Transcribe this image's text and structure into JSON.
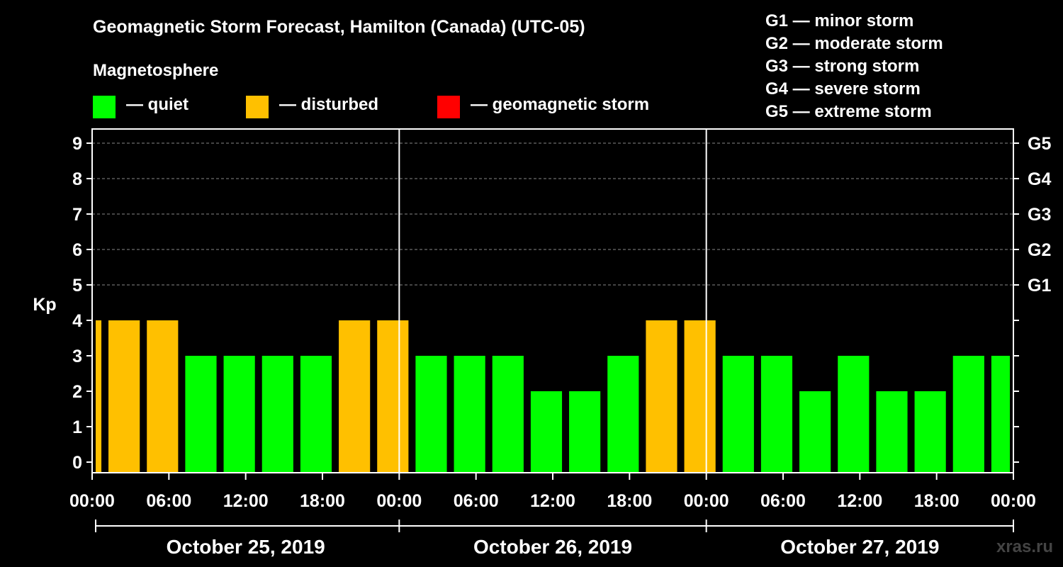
{
  "header": {
    "title": "Geomagnetic Storm Forecast, Hamilton (Canada) (UTC-05)",
    "subtitle": "Magnetosphere"
  },
  "legend": [
    {
      "label": "— quiet",
      "color": "#00ff00"
    },
    {
      "label": "— disturbed",
      "color": "#ffc000"
    },
    {
      "label": "— geomagnetic storm",
      "color": "#ff0000"
    }
  ],
  "storm_scale": [
    "G1 — minor storm",
    "G2 — moderate storm",
    "G3 — strong storm",
    "G4 — severe storm",
    "G5 — extreme storm"
  ],
  "watermark": "xras.ru",
  "chart_data": {
    "type": "bar",
    "title": "Geomagnetic Storm Forecast, Hamilton (Canada) (UTC-05)",
    "ylabel": "Kp",
    "ylim": [
      0,
      9
    ],
    "yticks": [
      "0",
      "1",
      "2",
      "3",
      "4",
      "5",
      "6",
      "7",
      "8",
      "9"
    ],
    "right_ticks": [
      {
        "kp": 5,
        "label": "G1"
      },
      {
        "kp": 6,
        "label": "G2"
      },
      {
        "kp": 7,
        "label": "G3"
      },
      {
        "kp": 8,
        "label": "G4"
      },
      {
        "kp": 9,
        "label": "G5"
      }
    ],
    "x_range_hours": [
      0,
      72
    ],
    "x_ticks": [
      {
        "h": 0,
        "label": "00:00"
      },
      {
        "h": 6,
        "label": "06:00"
      },
      {
        "h": 12,
        "label": "12:00"
      },
      {
        "h": 18,
        "label": "18:00"
      },
      {
        "h": 24,
        "label": "00:00"
      },
      {
        "h": 30,
        "label": "06:00"
      },
      {
        "h": 36,
        "label": "12:00"
      },
      {
        "h": 42,
        "label": "18:00"
      },
      {
        "h": 48,
        "label": "00:00"
      },
      {
        "h": 54,
        "label": "06:00"
      },
      {
        "h": 60,
        "label": "12:00"
      },
      {
        "h": 66,
        "label": "18:00"
      },
      {
        "h": 72,
        "label": "00:00"
      }
    ],
    "days": [
      "October 25, 2019",
      "October 26, 2019",
      "October 27, 2019"
    ],
    "thresholds": {
      "disturbed": 4,
      "storm": 5
    },
    "bars": [
      {
        "start": 0,
        "end": 1,
        "kp": 4
      },
      {
        "start": 1,
        "end": 4,
        "kp": 4
      },
      {
        "start": 4,
        "end": 7,
        "kp": 4
      },
      {
        "start": 7,
        "end": 10,
        "kp": 3
      },
      {
        "start": 10,
        "end": 13,
        "kp": 3
      },
      {
        "start": 13,
        "end": 16,
        "kp": 3
      },
      {
        "start": 16,
        "end": 19,
        "kp": 3
      },
      {
        "start": 19,
        "end": 22,
        "kp": 4
      },
      {
        "start": 22,
        "end": 25,
        "kp": 4
      },
      {
        "start": 25,
        "end": 28,
        "kp": 3
      },
      {
        "start": 28,
        "end": 31,
        "kp": 3
      },
      {
        "start": 31,
        "end": 34,
        "kp": 3
      },
      {
        "start": 34,
        "end": 37,
        "kp": 2
      },
      {
        "start": 37,
        "end": 40,
        "kp": 2
      },
      {
        "start": 40,
        "end": 43,
        "kp": 3
      },
      {
        "start": 43,
        "end": 46,
        "kp": 4
      },
      {
        "start": 46,
        "end": 49,
        "kp": 4
      },
      {
        "start": 49,
        "end": 52,
        "kp": 3
      },
      {
        "start": 52,
        "end": 55,
        "kp": 3
      },
      {
        "start": 55,
        "end": 58,
        "kp": 2
      },
      {
        "start": 58,
        "end": 61,
        "kp": 3
      },
      {
        "start": 61,
        "end": 64,
        "kp": 2
      },
      {
        "start": 64,
        "end": 67,
        "kp": 2
      },
      {
        "start": 67,
        "end": 70,
        "kp": 3
      },
      {
        "start": 70,
        "end": 72,
        "kp": 3
      }
    ]
  }
}
